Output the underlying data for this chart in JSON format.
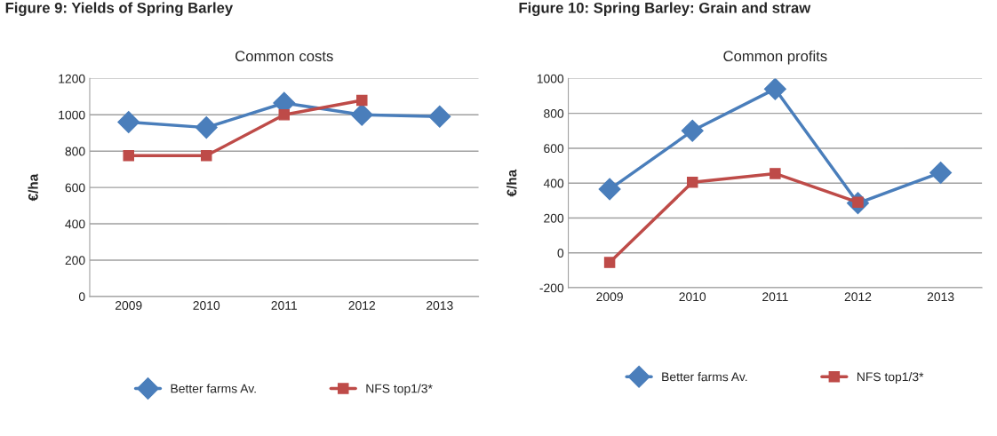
{
  "chart_data": [
    {
      "type": "line",
      "title": "Common costs",
      "ylabel": "€/ha",
      "categories": [
        "2009",
        "2010",
        "2011",
        "2012",
        "2013"
      ],
      "ylim": [
        0,
        1200
      ],
      "yticks": [
        0,
        200,
        400,
        600,
        800,
        1000,
        1200
      ],
      "grid": "y",
      "legend": "bottom",
      "annotations": [
        "Figure 9: Yields of Spring Barley"
      ],
      "series": [
        {
          "name": "Better farms Av.",
          "color": "#4a7ebb",
          "marker": "diamond",
          "values": [
            960,
            930,
            1065,
            1000,
            990
          ]
        },
        {
          "name": "NFS top1/3*",
          "color": "#be4b48",
          "marker": "square",
          "values": [
            775,
            775,
            1000,
            1080,
            null
          ]
        }
      ]
    },
    {
      "type": "line",
      "title": "Common profits",
      "ylabel": "€/ha",
      "categories": [
        "2009",
        "2010",
        "2011",
        "2012",
        "2013"
      ],
      "ylim": [
        -200,
        1000
      ],
      "yticks": [
        -200,
        0,
        200,
        400,
        600,
        800,
        1000
      ],
      "grid": "y",
      "legend": "bottom",
      "annotations": [
        "Figure 10: Spring Barley: Grain and straw"
      ],
      "series": [
        {
          "name": "Better farms Av.",
          "color": "#4a7ebb",
          "marker": "diamond",
          "values": [
            365,
            700,
            940,
            285,
            460
          ]
        },
        {
          "name": "NFS top1/3*",
          "color": "#be4b48",
          "marker": "square",
          "values": [
            -55,
            405,
            455,
            290,
            null
          ]
        }
      ]
    }
  ]
}
